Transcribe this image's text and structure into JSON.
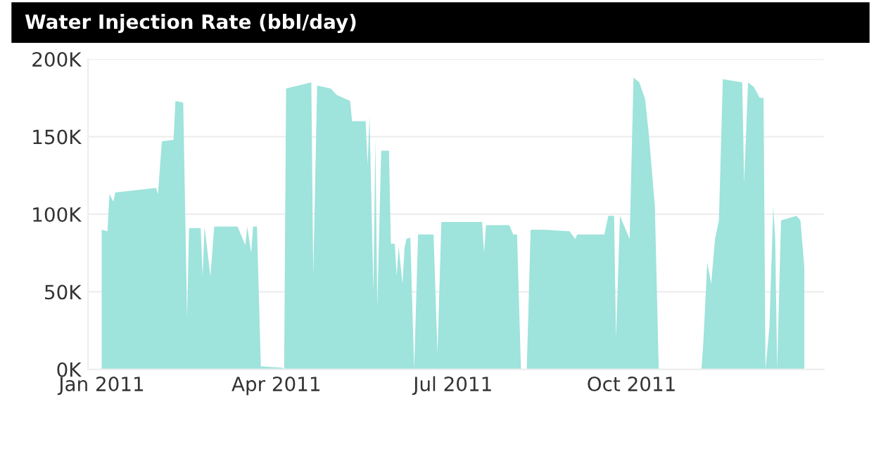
{
  "chart_data": {
    "type": "area",
    "title": "Water Injection Rate (bbl/day)",
    "x": [
      "2011-01-01",
      "2011-01-04",
      "2011-01-05",
      "2011-01-07",
      "2011-01-08",
      "2011-01-29",
      "2011-01-30",
      "2011-02-01",
      "2011-02-07",
      "2011-02-08",
      "2011-02-12",
      "2011-02-14",
      "2011-02-15",
      "2011-02-21",
      "2011-02-22",
      "2011-02-23",
      "2011-02-26",
      "2011-02-28",
      "2011-03-12",
      "2011-03-16",
      "2011-03-17",
      "2011-03-19",
      "2011-03-20",
      "2011-03-22",
      "2011-03-24",
      "2011-04-04",
      "2011-04-05",
      "2011-04-06",
      "2011-04-19",
      "2011-04-20",
      "2011-04-22",
      "2011-04-29",
      "2011-05-02",
      "2011-05-09",
      "2011-05-10",
      "2011-05-17",
      "2011-05-18",
      "2011-05-19",
      "2011-05-21",
      "2011-05-22",
      "2011-05-23",
      "2011-05-25",
      "2011-05-29",
      "2011-05-30",
      "2011-06-01",
      "2011-06-02",
      "2011-06-03",
      "2011-06-05",
      "2011-06-06",
      "2011-06-07",
      "2011-06-09",
      "2011-06-11",
      "2011-06-13",
      "2011-06-21",
      "2011-06-23",
      "2011-06-25",
      "2011-07-16",
      "2011-07-17",
      "2011-07-18",
      "2011-07-30",
      "2011-08-01",
      "2011-08-03",
      "2011-08-05",
      "2011-08-08",
      "2011-08-10",
      "2011-08-17",
      "2011-08-30",
      "2011-09-02",
      "2011-09-03",
      "2011-09-17",
      "2011-09-19",
      "2011-09-22",
      "2011-09-23",
      "2011-09-25",
      "2011-09-28",
      "2011-09-30",
      "2011-10-02",
      "2011-10-05",
      "2011-10-08",
      "2011-10-10",
      "2011-10-13",
      "2011-10-15",
      "2011-11-06",
      "2011-11-07",
      "2011-11-09",
      "2011-11-11",
      "2011-11-13",
      "2011-11-15",
      "2011-11-17",
      "2011-11-27",
      "2011-11-28",
      "2011-11-30",
      "2011-12-03",
      "2011-12-06",
      "2011-12-08",
      "2011-12-09",
      "2011-12-11",
      "2011-12-13",
      "2011-12-14",
      "2011-12-15",
      "2011-12-17",
      "2011-12-25",
      "2011-12-27",
      "2011-12-29"
    ],
    "series": [
      {
        "color": "#9ee3dc",
        "values": [
          90000,
          89000,
          113000,
          108000,
          114000,
          117000,
          113000,
          147000,
          148000,
          173000,
          172000,
          33000,
          91000,
          91000,
          60000,
          92000,
          60000,
          92000,
          92000,
          80000,
          92000,
          75000,
          92000,
          92000,
          2000,
          1000,
          0,
          181000,
          185000,
          60000,
          183000,
          181000,
          177000,
          173000,
          160000,
          160000,
          132000,
          163000,
          50000,
          149000,
          40000,
          141000,
          141000,
          81000,
          81000,
          60000,
          79000,
          55000,
          78000,
          84000,
          85000,
          0,
          87000,
          87000,
          10000,
          95000,
          95000,
          75000,
          93000,
          93000,
          87000,
          87000,
          0,
          0,
          90000,
          90000,
          89000,
          84000,
          87000,
          87000,
          99000,
          99000,
          20000,
          99000,
          90000,
          84000,
          188000,
          185000,
          174000,
          150000,
          105000,
          0,
          0,
          18000,
          69000,
          55000,
          84000,
          96000,
          187000,
          185000,
          120000,
          185000,
          182000,
          175000,
          175000,
          0,
          27000,
          105000,
          84000,
          0,
          96000,
          99000,
          96000,
          66000
        ]
      }
    ],
    "xlim": [
      "2010-12-25",
      "2012-01-08"
    ],
    "xticks": [
      {
        "value": "2011-01-01",
        "label": "Jan 2011"
      },
      {
        "value": "2011-04-01",
        "label": "Apr 2011"
      },
      {
        "value": "2011-07-01",
        "label": "Jul 2011"
      },
      {
        "value": "2011-10-01",
        "label": "Oct 2011"
      }
    ],
    "ylim": [
      0,
      200000
    ],
    "yticks": [
      {
        "value": 0,
        "label": "0K"
      },
      {
        "value": 50000,
        "label": "50K"
      },
      {
        "value": 100000,
        "label": "100K"
      },
      {
        "value": 150000,
        "label": "150K"
      },
      {
        "value": 200000,
        "label": "200K"
      }
    ],
    "grid": "y"
  }
}
